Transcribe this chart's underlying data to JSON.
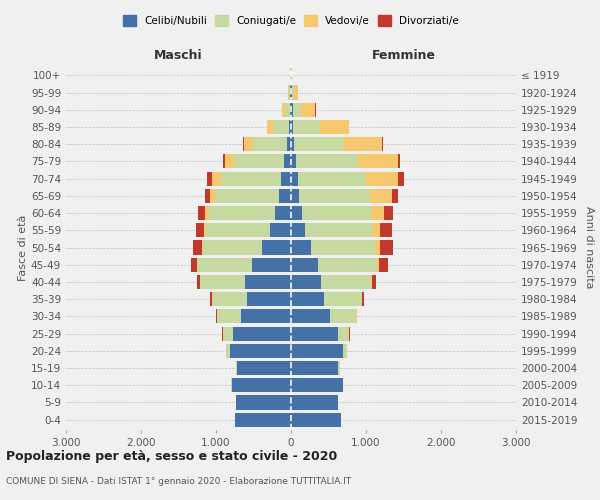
{
  "age_groups_bottom_to_top": [
    "0-4",
    "5-9",
    "10-14",
    "15-19",
    "20-24",
    "25-29",
    "30-34",
    "35-39",
    "40-44",
    "45-49",
    "50-54",
    "55-59",
    "60-64",
    "65-69",
    "70-74",
    "75-79",
    "80-84",
    "85-89",
    "90-94",
    "95-99",
    "100+"
  ],
  "birth_years_bottom_to_top": [
    "2015-2019",
    "2010-2014",
    "2005-2009",
    "2000-2004",
    "1995-1999",
    "1990-1994",
    "1985-1989",
    "1980-1984",
    "1975-1979",
    "1970-1974",
    "1965-1969",
    "1960-1964",
    "1955-1959",
    "1950-1954",
    "1945-1949",
    "1940-1944",
    "1935-1939",
    "1930-1934",
    "1925-1929",
    "1920-1924",
    "≤ 1919"
  ],
  "maschi_celibe": [
    750,
    730,
    790,
    720,
    820,
    780,
    670,
    590,
    610,
    520,
    390,
    280,
    220,
    160,
    130,
    90,
    60,
    30,
    15,
    10,
    5
  ],
  "maschi_coniugato": [
    2,
    4,
    8,
    18,
    50,
    130,
    320,
    460,
    600,
    730,
    780,
    850,
    880,
    850,
    810,
    670,
    450,
    210,
    65,
    18,
    3
  ],
  "maschi_vedovo": [
    0,
    0,
    0,
    0,
    0,
    1,
    1,
    2,
    4,
    8,
    13,
    28,
    45,
    75,
    110,
    125,
    120,
    75,
    35,
    8,
    1
  ],
  "maschi_divorziato": [
    0,
    0,
    0,
    0,
    1,
    4,
    12,
    25,
    45,
    75,
    125,
    115,
    95,
    65,
    75,
    18,
    10,
    5,
    2,
    1,
    0
  ],
  "femmine_nubile": [
    670,
    620,
    690,
    630,
    690,
    620,
    520,
    440,
    400,
    360,
    260,
    185,
    150,
    110,
    90,
    70,
    45,
    28,
    20,
    12,
    5
  ],
  "femmine_coniugata": [
    2,
    4,
    8,
    22,
    60,
    155,
    350,
    500,
    660,
    780,
    860,
    890,
    910,
    940,
    910,
    820,
    650,
    360,
    115,
    28,
    4
  ],
  "femmine_vedova": [
    0,
    0,
    0,
    0,
    1,
    1,
    4,
    8,
    18,
    35,
    70,
    110,
    185,
    300,
    430,
    530,
    520,
    380,
    190,
    55,
    8
  ],
  "femmine_divorziata": [
    0,
    0,
    0,
    0,
    1,
    4,
    12,
    28,
    55,
    115,
    170,
    155,
    115,
    75,
    75,
    28,
    18,
    8,
    3,
    1,
    0
  ],
  "color_celibe": "#4472a8",
  "color_coniugato": "#c5d9a0",
  "color_vedovo": "#f5c86e",
  "color_divorziato": "#c0392b",
  "xlim": 3000,
  "title": "Popolazione per età, sesso e stato civile - 2020",
  "subtitle": "COMUNE DI SIENA - Dati ISTAT 1° gennaio 2020 - Elaborazione TUTTITALIA.IT",
  "ylabel_left": "Fasce di età",
  "ylabel_right": "Anni di nascita",
  "label_maschi": "Maschi",
  "label_femmine": "Femmine",
  "legend_labels": [
    "Celibi/Nubili",
    "Coniugati/e",
    "Vedovi/e",
    "Divorziati/e"
  ],
  "background_color": "#f0f0f0",
  "xtick_labels": [
    "3.000",
    "2.000",
    "1.000",
    "0",
    "1.000",
    "2.000",
    "3.000"
  ]
}
